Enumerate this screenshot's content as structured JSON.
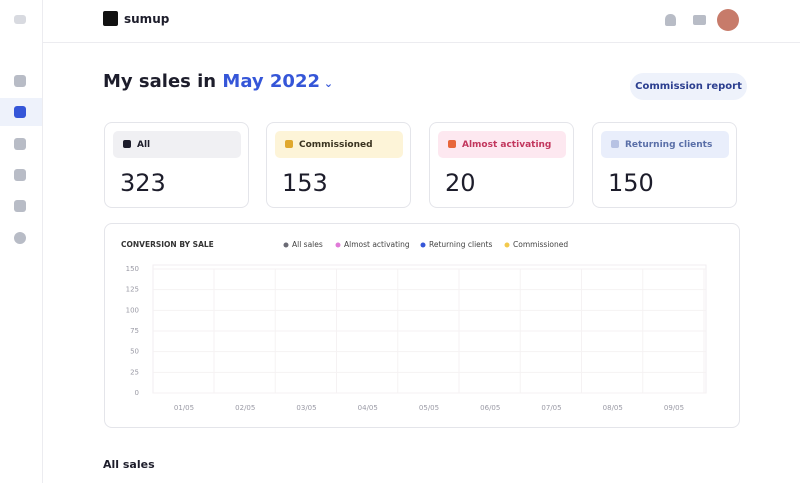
{
  "header": {
    "logo": "sumup"
  },
  "heading": {
    "prefix": "My sales in",
    "month": "May 2022"
  },
  "actions": {
    "commission_report": "Commission report"
  },
  "stats": [
    {
      "label": "All",
      "value": "323"
    },
    {
      "label": "Commissioned",
      "value": "153"
    },
    {
      "label": "Almost activating",
      "value": "20"
    },
    {
      "label": "Returning clients",
      "value": "150"
    }
  ],
  "chart": {
    "title": "CONVERSION BY SALE",
    "legend": [
      {
        "name": "All sales",
        "color": "#6b6b75"
      },
      {
        "name": "Almost activating",
        "color": "#e07ad8"
      },
      {
        "name": "Returning clients",
        "color": "#3556d8"
      },
      {
        "name": "Commissioned",
        "color": "#f2c94c"
      }
    ],
    "ylim": [
      0,
      150
    ],
    "yticks": [
      150,
      125,
      100,
      75,
      50,
      25,
      0
    ],
    "x": [
      "01/05",
      "02/05",
      "03/05",
      "04/05",
      "05/05",
      "06/05",
      "07/05",
      "08/05",
      "09/05"
    ]
  },
  "section": {
    "title": "All sales"
  }
}
